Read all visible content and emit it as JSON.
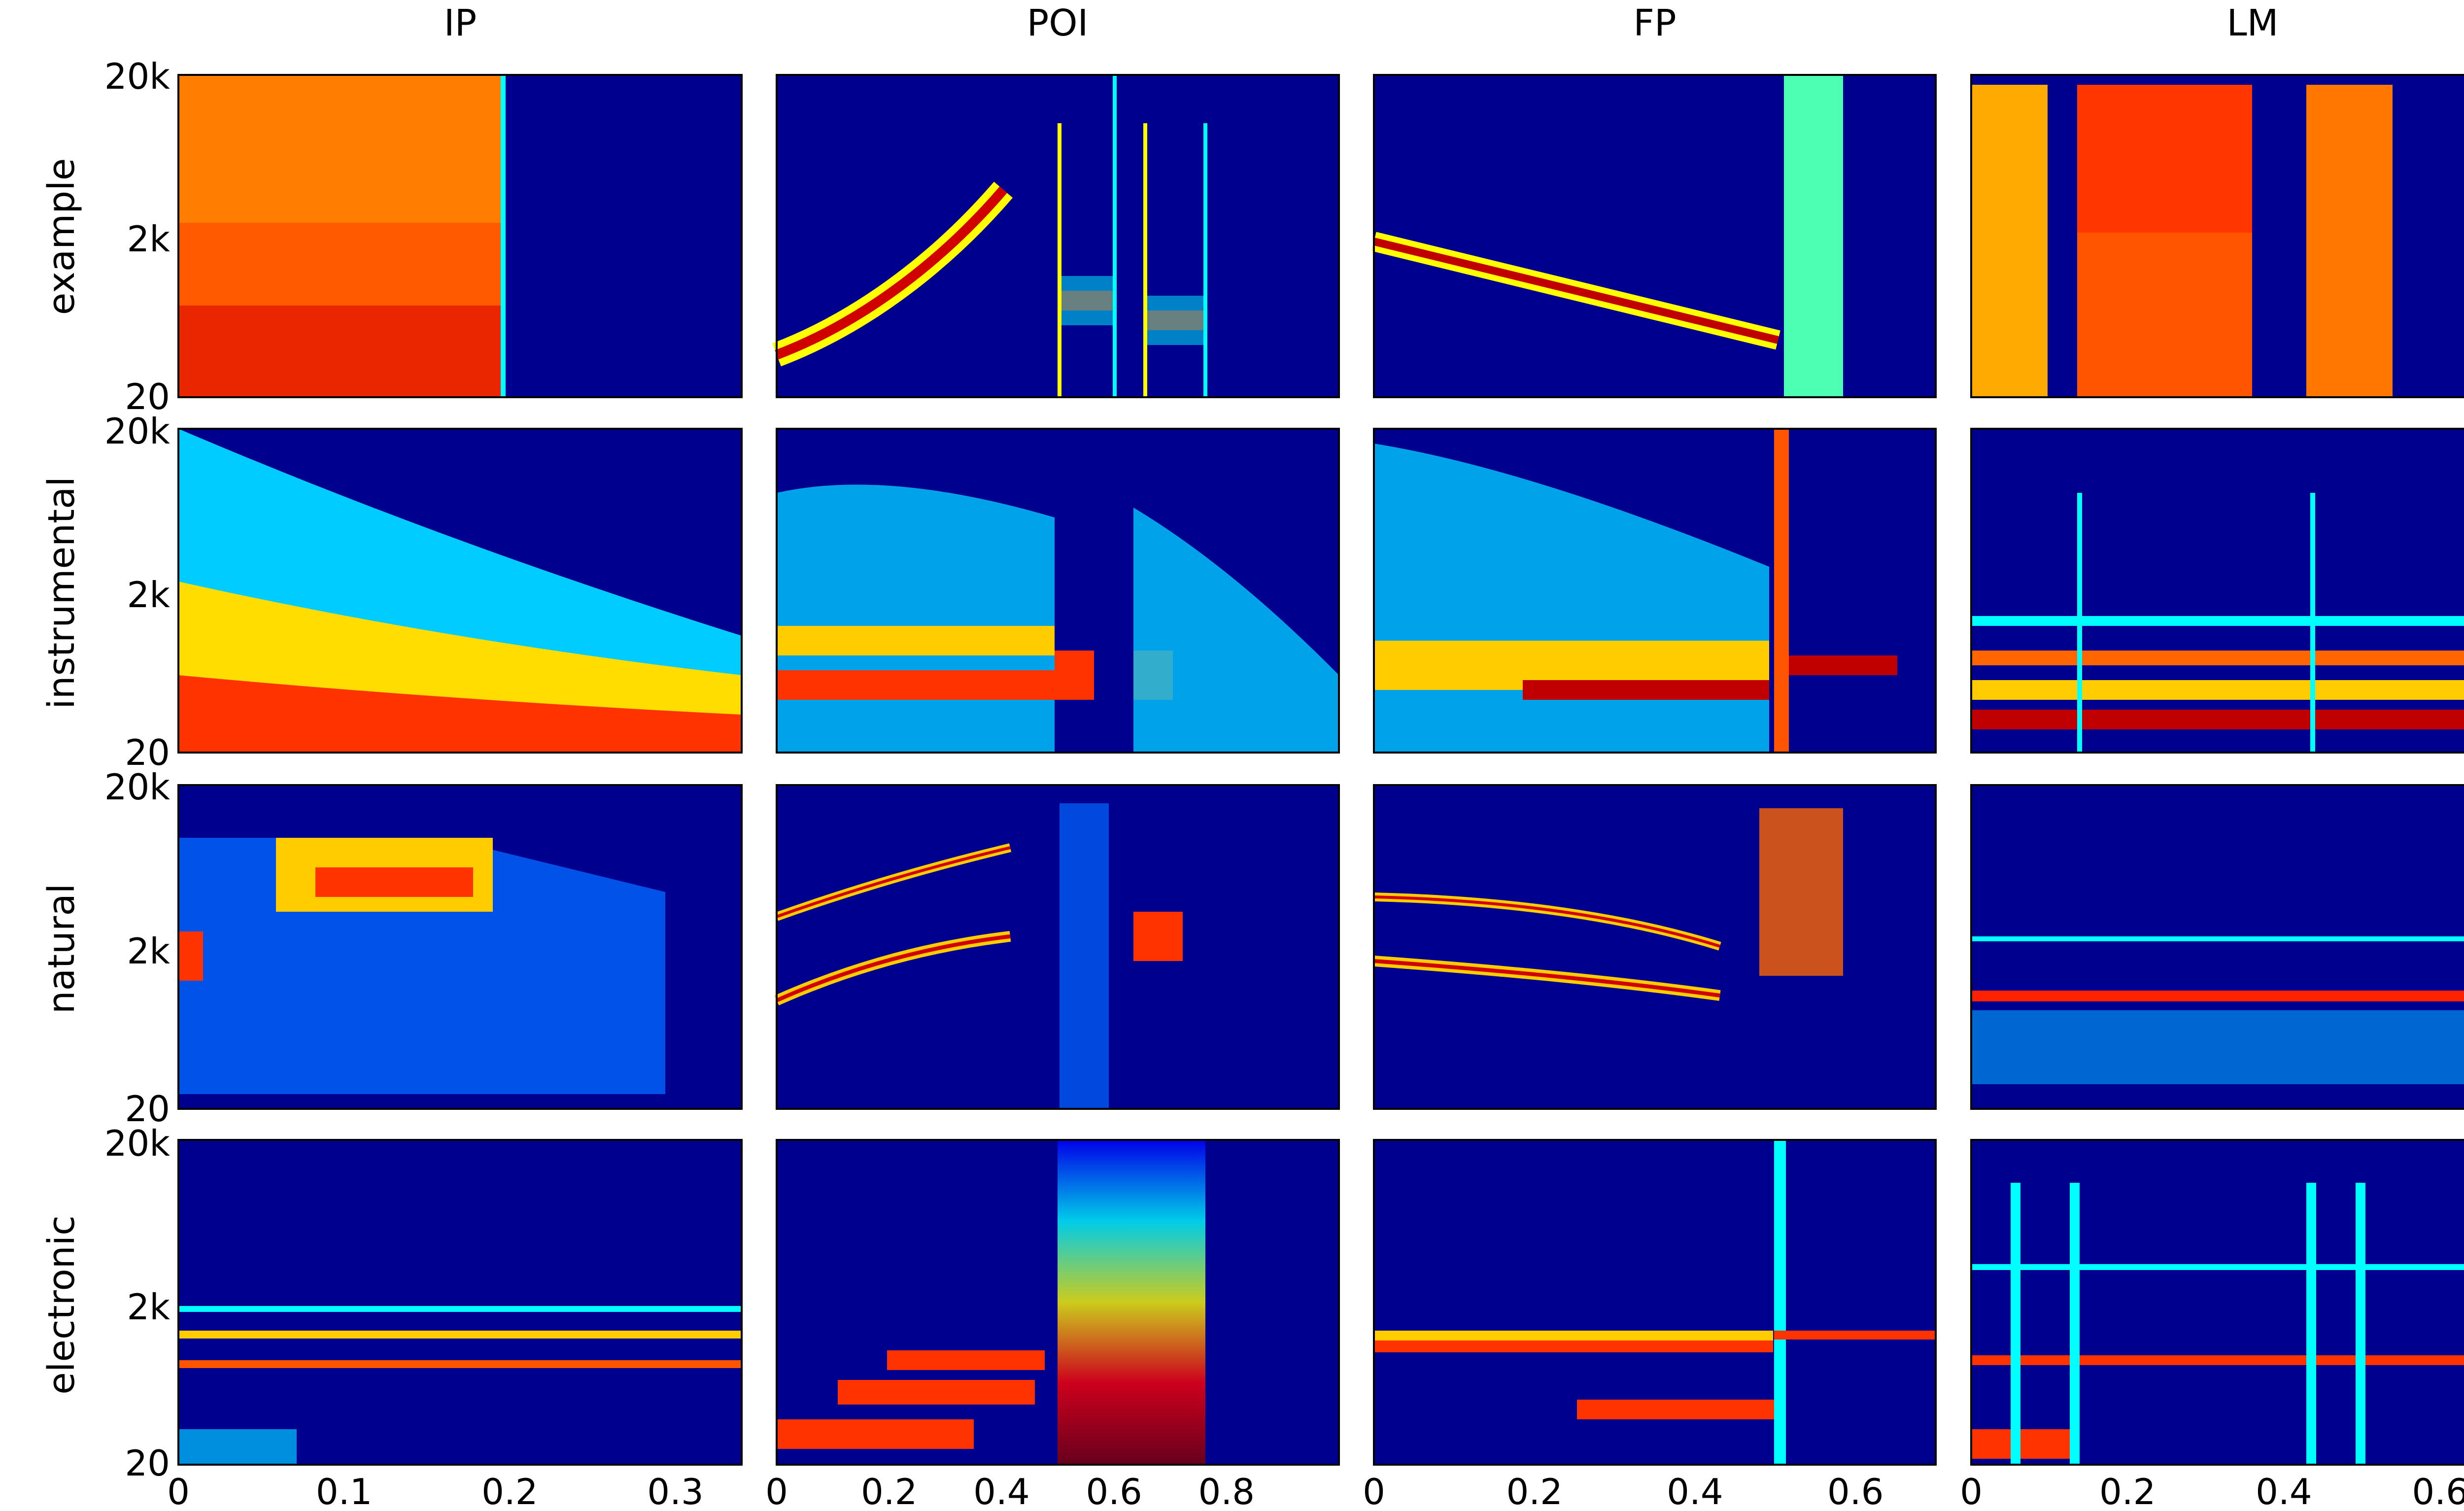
{
  "chart_data": {
    "type": "heatmap",
    "columns": [
      "IP",
      "POI",
      "FP",
      "LM"
    ],
    "rows": [
      "example",
      "instrumental",
      "natural",
      "electronic"
    ],
    "colormap": "jet",
    "background": "#00008f",
    "y_scale": "log",
    "y_ticks": [
      "20",
      "2k",
      "20k"
    ],
    "xlim": [
      [
        0,
        0.34
      ],
      [
        0,
        1.0
      ],
      [
        0,
        0.7
      ],
      [
        0,
        0.72
      ]
    ],
    "x_ticks": [
      [
        "0",
        "0.1",
        "0.2",
        "0.3"
      ],
      [
        "0",
        "0.2",
        "0.4",
        "0.6",
        "0.8"
      ],
      [
        "0",
        "0.2",
        "0.4",
        "0.6"
      ],
      [
        "0",
        "0.2",
        "0.4",
        "0.6"
      ]
    ],
    "x_tick_values": [
      [
        0,
        0.1,
        0.2,
        0.3
      ],
      [
        0,
        0.2,
        0.4,
        0.6,
        0.8
      ],
      [
        0,
        0.2,
        0.4,
        0.6
      ],
      [
        0,
        0.2,
        0.4,
        0.6
      ]
    ]
  }
}
